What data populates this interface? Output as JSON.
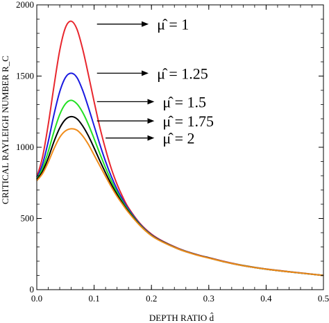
{
  "chart_data": {
    "type": "line",
    "title": "",
    "xlabel": "DEPTH RATIO d̂",
    "ylabel": "CRITICAL RAYLEIGH NUMBER  R_C",
    "xlim": [
      0.0,
      0.5
    ],
    "ylim": [
      0,
      2000
    ],
    "x_ticks": [
      0.0,
      0.1,
      0.2,
      0.3,
      0.4,
      0.5
    ],
    "x_tick_labels": [
      "0.0",
      "0.1",
      "0.2",
      "0.3",
      "0.4",
      "0.5"
    ],
    "y_ticks": [
      0,
      500,
      1000,
      1500,
      2000
    ],
    "y_tick_labels": [
      "0",
      "500",
      "1000",
      "1500",
      "2000"
    ],
    "grid": false,
    "x": [
      0.0,
      0.01,
      0.02,
      0.03,
      0.04,
      0.05,
      0.06,
      0.07,
      0.08,
      0.09,
      0.1,
      0.11,
      0.12,
      0.13,
      0.14,
      0.15,
      0.16,
      0.18,
      0.2,
      0.22,
      0.25,
      0.28,
      0.3,
      0.33,
      0.36,
      0.4,
      0.45,
      0.5
    ],
    "series": [
      {
        "label": "μ̂ = 1",
        "color": "#e8262d",
        "values": [
          790,
          930,
          1160,
          1430,
          1680,
          1840,
          1885,
          1830,
          1690,
          1510,
          1320,
          1140,
          985,
          850,
          740,
          650,
          575,
          465,
          390,
          340,
          285,
          245,
          225,
          195,
          170,
          145,
          122,
          100
        ]
      },
      {
        "label": "μ̂ = 1.25",
        "color": "#1a1ae0",
        "values": [
          780,
          880,
          1040,
          1230,
          1390,
          1490,
          1520,
          1490,
          1400,
          1280,
          1150,
          1020,
          900,
          795,
          705,
          630,
          565,
          460,
          385,
          337,
          283,
          244,
          224,
          194,
          169,
          144,
          121,
          100
        ]
      },
      {
        "label": "μ̂ = 1.5",
        "color": "#22e022",
        "values": [
          775,
          850,
          970,
          1110,
          1230,
          1305,
          1330,
          1305,
          1245,
          1160,
          1060,
          955,
          855,
          765,
          685,
          615,
          555,
          455,
          382,
          335,
          282,
          243,
          223,
          193,
          169,
          144,
          121,
          100
        ]
      },
      {
        "label": "μ̂ = 1.75",
        "color": "#000000",
        "values": [
          770,
          830,
          925,
          1040,
          1135,
          1195,
          1215,
          1200,
          1150,
          1080,
          995,
          905,
          820,
          740,
          668,
          605,
          548,
          452,
          380,
          334,
          281,
          243,
          223,
          193,
          168,
          144,
          121,
          100
        ]
      },
      {
        "label": "μ̂ = 2",
        "color": "#f08c1a",
        "values": [
          765,
          815,
          895,
          990,
          1070,
          1115,
          1130,
          1120,
          1080,
          1020,
          945,
          870,
          795,
          722,
          655,
          597,
          542,
          450,
          379,
          333,
          281,
          242,
          222,
          193,
          168,
          144,
          121,
          100
        ]
      }
    ],
    "annotations": [
      {
        "text": "μ̂ = 1",
        "x_tail": 0.195,
        "y_tail": 1865,
        "x_head": 0.105,
        "y_head": 1865
      },
      {
        "text": "μ̂ = 1.25",
        "x_tail": 0.195,
        "y_tail": 1520,
        "x_head": 0.105,
        "y_head": 1520
      },
      {
        "text": "μ̂ = 1.5",
        "x_tail": 0.205,
        "y_tail": 1320,
        "x_head": 0.105,
        "y_head": 1320
      },
      {
        "text": "μ̂ = 1.75",
        "x_tail": 0.205,
        "y_tail": 1185,
        "x_head": 0.105,
        "y_head": 1185
      },
      {
        "text": "μ̂ = 2",
        "x_tail": 0.205,
        "y_tail": 1065,
        "x_head": 0.12,
        "y_head": 1065
      }
    ]
  }
}
